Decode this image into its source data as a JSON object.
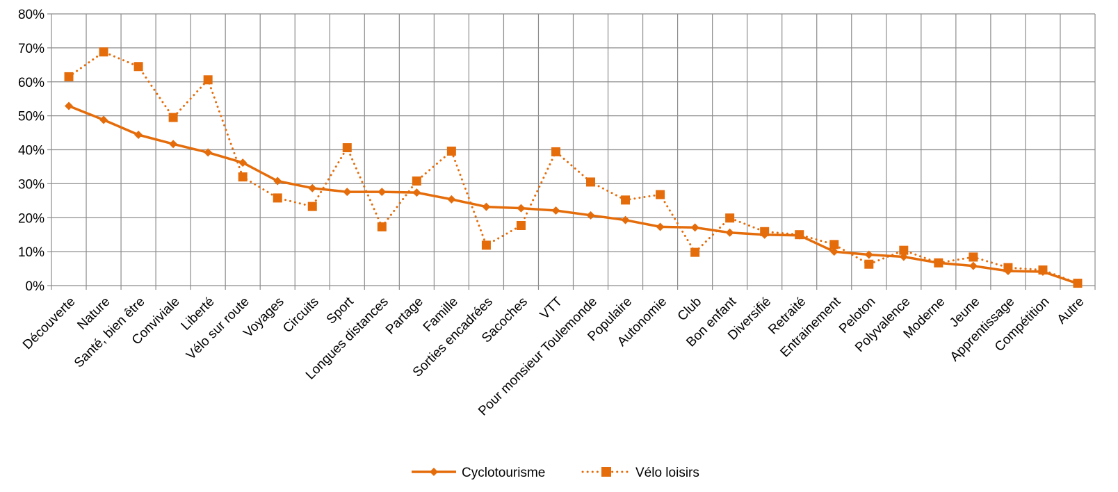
{
  "chart_data": {
    "type": "line",
    "title": "",
    "xlabel": "",
    "ylabel": "",
    "ylim": [
      0,
      80
    ],
    "yticks": [
      "0%",
      "10%",
      "20%",
      "30%",
      "40%",
      "50%",
      "60%",
      "70%",
      "80%"
    ],
    "grid": true,
    "legend_position": "bottom",
    "categories": [
      "Découverte",
      "Nature",
      "Santé, bien être",
      "Conviviale",
      "Liberté",
      "Vélo sur route",
      "Voyages",
      "Circuits",
      "Sport",
      "Longues distances",
      "Partage",
      "Famille",
      "Sorties encadrées",
      "Sacoches",
      "VTT",
      "Pour monsieur Toulemonde",
      "Populaire",
      "Autonomie",
      "Club",
      "Bon enfant",
      "Diversifié",
      "Retraité",
      "Entrainement",
      "Peloton",
      "Polyvalence",
      "Moderne",
      "Jeune",
      "Apprentissage",
      "Compétition",
      "Autre"
    ],
    "series": [
      {
        "name": "Cyclotourisme",
        "color": "#E46C0A",
        "style": "solid",
        "marker": "diamond",
        "values": [
          52.9,
          48.8,
          44.4,
          41.7,
          39.2,
          36.2,
          30.8,
          28.7,
          27.6,
          27.6,
          27.4,
          25.4,
          23.2,
          22.8,
          22.1,
          20.7,
          19.3,
          17.3,
          17.1,
          15.6,
          15.0,
          14.8,
          10.0,
          9.1,
          8.5,
          6.7,
          5.8,
          4.3,
          4.1,
          0.6
        ]
      },
      {
        "name": "Vélo loisirs",
        "color": "#E46C0A",
        "style": "dotted",
        "marker": "square",
        "values": [
          61.5,
          68.8,
          64.5,
          49.5,
          60.6,
          32.0,
          25.8,
          23.3,
          40.6,
          17.3,
          30.8,
          39.6,
          11.9,
          17.7,
          39.4,
          30.5,
          25.2,
          26.8,
          9.8,
          19.9,
          15.9,
          15.0,
          12.1,
          6.3,
          10.4,
          6.7,
          8.4,
          5.3,
          4.6,
          0.7
        ]
      }
    ]
  }
}
